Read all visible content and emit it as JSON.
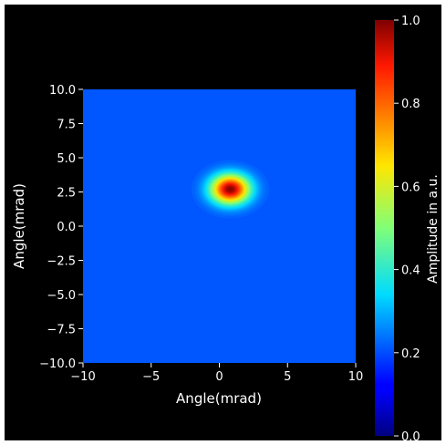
{
  "chart_data": {
    "type": "heatmap",
    "title": "",
    "xlabel": "Angle(mrad)",
    "ylabel": "Angle(mrad)",
    "xlim": [
      -10,
      10
    ],
    "ylim": [
      -10,
      10
    ],
    "x_ticks": [
      -10,
      -5,
      0,
      5,
      10
    ],
    "x_tick_labels": [
      "−10",
      "−5",
      "0",
      "5",
      "10"
    ],
    "y_ticks": [
      10.0,
      7.5,
      5.0,
      2.5,
      0.0,
      -2.5,
      -5.0,
      -7.5,
      -10.0
    ],
    "y_tick_labels": [
      "10.0",
      "7.5",
      "5.0",
      "2.5",
      "0.0",
      "−2.5",
      "−5.0",
      "−7.5",
      "−10.0"
    ],
    "peak": {
      "x": 0.8,
      "y": 2.7,
      "amplitude": 1.0
    },
    "sigma_x": 1.0,
    "sigma_y": 0.75,
    "background_amplitude": 0.08,
    "colormap": "jet",
    "colorbar": {
      "label": "Amplitude in a.u.",
      "range": [
        0.0,
        1.0
      ],
      "ticks": [
        0.0,
        0.2,
        0.4,
        0.6,
        0.8,
        1.0
      ],
      "tick_labels": [
        "0.0",
        "0.2",
        "0.4",
        "0.6",
        "0.8",
        "1.0"
      ]
    },
    "grid": false,
    "colors": {
      "figure_background": "#000000",
      "axis_text": "#ffffff"
    }
  }
}
